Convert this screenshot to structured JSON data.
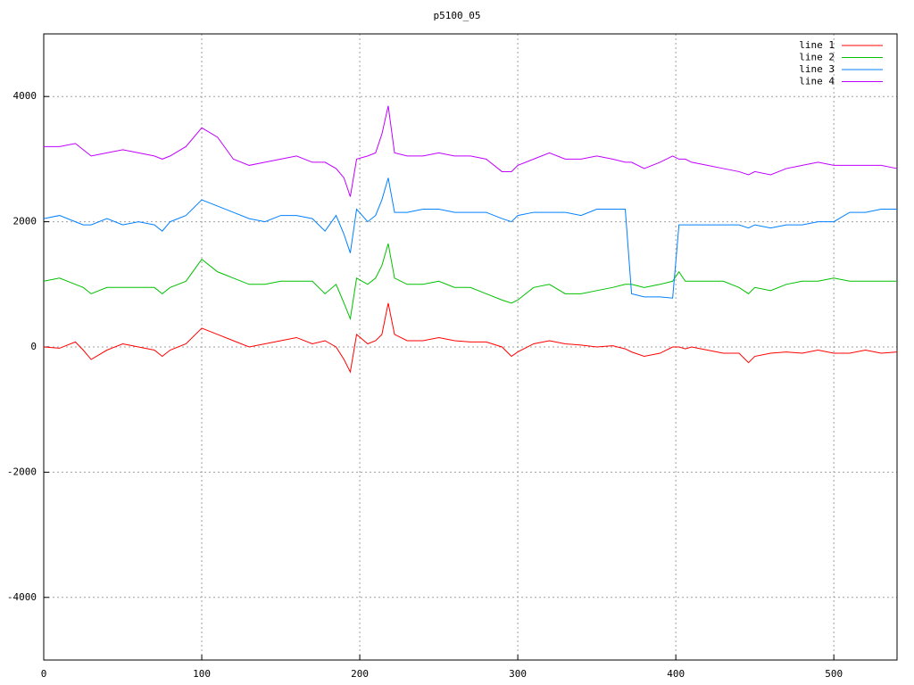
{
  "chart_data": {
    "type": "line",
    "title": "p5100_05",
    "x": [
      0,
      10,
      20,
      25,
      30,
      40,
      50,
      60,
      70,
      75,
      80,
      90,
      100,
      110,
      120,
      130,
      140,
      150,
      160,
      170,
      178,
      185,
      190,
      194,
      198,
      205,
      210,
      214,
      218,
      222,
      230,
      240,
      250,
      260,
      270,
      280,
      290,
      296,
      300,
      310,
      320,
      330,
      340,
      350,
      360,
      368,
      372,
      380,
      390,
      398,
      402,
      406,
      410,
      420,
      430,
      440,
      446,
      450,
      460,
      470,
      480,
      490,
      500,
      510,
      520,
      530,
      540
    ],
    "series": [
      {
        "name": "line 1",
        "color": "#ff0000",
        "values": [
          0,
          -20,
          80,
          -50,
          -200,
          -50,
          50,
          0,
          -50,
          -150,
          -50,
          50,
          300,
          200,
          100,
          0,
          50,
          100,
          150,
          50,
          100,
          0,
          -200,
          -400,
          200,
          50,
          100,
          200,
          700,
          200,
          100,
          100,
          150,
          100,
          80,
          80,
          0,
          -150,
          -80,
          50,
          100,
          50,
          30,
          0,
          20,
          -30,
          -80,
          -150,
          -100,
          0,
          0,
          -30,
          0,
          -50,
          -100,
          -100,
          -250,
          -150,
          -100,
          -80,
          -100,
          -50,
          -100,
          -100,
          -50,
          -100,
          -80
        ]
      },
      {
        "name": "line 2",
        "color": "#00c000",
        "values": [
          1050,
          1100,
          1000,
          950,
          850,
          950,
          950,
          950,
          950,
          850,
          950,
          1050,
          1400,
          1200,
          1100,
          1000,
          1000,
          1050,
          1050,
          1050,
          850,
          1000,
          700,
          450,
          1100,
          1000,
          1100,
          1300,
          1650,
          1100,
          1000,
          1000,
          1050,
          950,
          950,
          850,
          750,
          700,
          750,
          950,
          1000,
          850,
          850,
          900,
          950,
          1000,
          1000,
          950,
          1000,
          1050,
          1200,
          1050,
          1050,
          1050,
          1050,
          950,
          850,
          950,
          900,
          1000,
          1050,
          1050,
          1100,
          1050,
          1050,
          1050,
          1050
        ]
      },
      {
        "name": "line 3",
        "color": "#0080ff",
        "values": [
          2050,
          2100,
          2000,
          1950,
          1950,
          2050,
          1950,
          2000,
          1950,
          1850,
          2000,
          2100,
          2350,
          2250,
          2150,
          2050,
          2000,
          2100,
          2100,
          2050,
          1850,
          2100,
          1800,
          1500,
          2200,
          2000,
          2100,
          2350,
          2700,
          2150,
          2150,
          2200,
          2200,
          2150,
          2150,
          2150,
          2050,
          2000,
          2100,
          2150,
          2150,
          2150,
          2100,
          2200,
          2200,
          2200,
          850,
          800,
          800,
          780,
          1950,
          1950,
          1950,
          1950,
          1950,
          1950,
          1900,
          1950,
          1900,
          1950,
          1950,
          2000,
          2000,
          2150,
          2150,
          2200,
          2200
        ]
      },
      {
        "name": "line 4",
        "color": "#c000ff",
        "values": [
          3200,
          3200,
          3250,
          3150,
          3050,
          3100,
          3150,
          3100,
          3050,
          3000,
          3050,
          3200,
          3500,
          3350,
          3000,
          2900,
          2950,
          3000,
          3050,
          2950,
          2950,
          2850,
          2700,
          2400,
          3000,
          3050,
          3100,
          3400,
          3850,
          3100,
          3050,
          3050,
          3100,
          3050,
          3050,
          3000,
          2800,
          2800,
          2900,
          3000,
          3100,
          3000,
          3000,
          3050,
          3000,
          2950,
          2950,
          2850,
          2950,
          3050,
          3000,
          3000,
          2950,
          2900,
          2850,
          2800,
          2750,
          2800,
          2750,
          2850,
          2900,
          2950,
          2900,
          2900,
          2900,
          2900,
          2850
        ]
      }
    ],
    "xlim": [
      0,
      540
    ],
    "ylim": [
      -5000,
      5000
    ],
    "xticks": [
      0,
      100,
      200,
      300,
      400,
      500
    ],
    "yticks": [
      -4000,
      -2000,
      0,
      2000,
      4000
    ],
    "grid": true,
    "legend": "top-right"
  }
}
